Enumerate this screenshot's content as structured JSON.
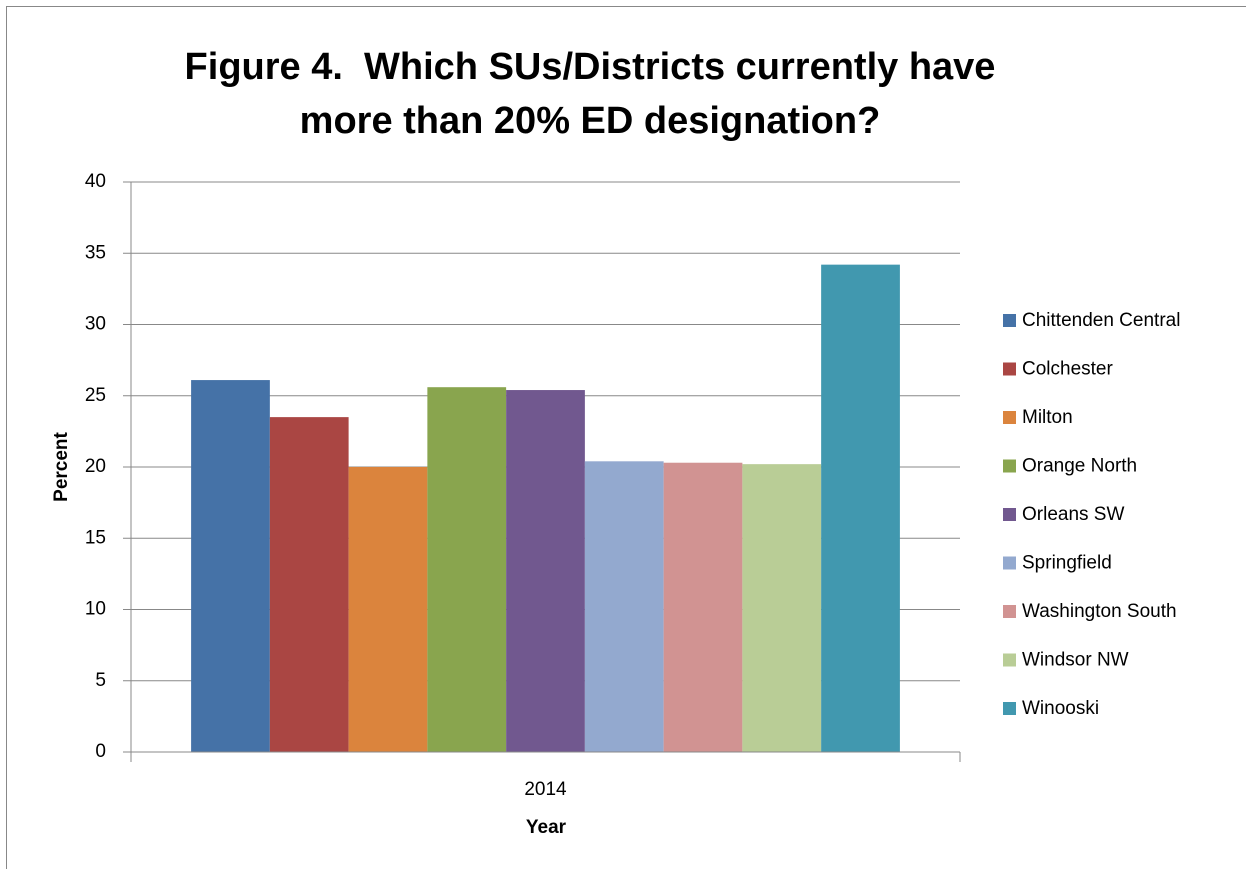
{
  "chart_data": {
    "type": "bar",
    "title": "Figure 4.  Which SUs/Districts currently have\nmore than 20% ED designation?",
    "x_label": "Year",
    "y_label": "Percent",
    "categories": [
      "2014"
    ],
    "series": [
      {
        "name": "Chittenden Central",
        "color": "#4572a7",
        "values": [
          26.1
        ]
      },
      {
        "name": "Colchester",
        "color": "#aa4643",
        "values": [
          23.5
        ]
      },
      {
        "name": "Milton",
        "color": "#db843d",
        "values": [
          20.0
        ]
      },
      {
        "name": "Orange North",
        "color": "#89a54e",
        "values": [
          25.6
        ]
      },
      {
        "name": "Orleans SW",
        "color": "#71588f",
        "values": [
          25.4
        ]
      },
      {
        "name": "Springfield",
        "color": "#93a9cf",
        "values": [
          20.4
        ]
      },
      {
        "name": "Washington South",
        "color": "#d19392",
        "values": [
          20.3
        ]
      },
      {
        "name": "Windsor NW",
        "color": "#b9cd96",
        "values": [
          20.2
        ]
      },
      {
        "name": "Winooski",
        "color": "#4198af",
        "values": [
          34.2
        ]
      }
    ],
    "ylim": [
      0,
      40
    ],
    "yticks": [
      0,
      5,
      10,
      15,
      20,
      25,
      30,
      35,
      40
    ],
    "grid": true,
    "legend": "right"
  }
}
